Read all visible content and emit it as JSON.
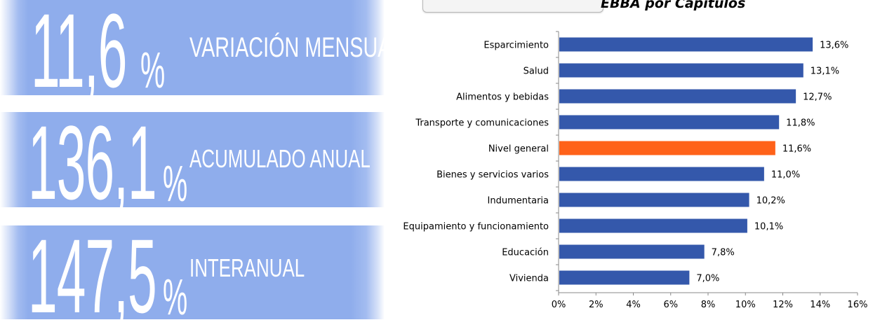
{
  "stats": [
    {
      "value": "11,6",
      "unit": "%",
      "label": "VARIACIÓN MENSUAL"
    },
    {
      "value": "136,1",
      "unit": "%",
      "label": "ACUMULADO ANUAL"
    },
    {
      "value": "147,5",
      "unit": "%",
      "label": "INTERANUAL"
    }
  ],
  "chart_title": "EBBA por Capítulos",
  "colors": {
    "panel": "#8fadec",
    "bar": "#3458ab",
    "highlight": "#ff6219"
  },
  "chart_data": {
    "type": "bar",
    "orientation": "horizontal",
    "categories": [
      "Esparcimiento",
      "Salud",
      "Alimentos y bebidas",
      "Transporte y comunicaciones",
      "Nivel general",
      "Bienes y servicios varios",
      "Indumentaria",
      "Equipamiento y funcionamiento",
      "Educación",
      "Vivienda"
    ],
    "values": [
      13.6,
      13.1,
      12.7,
      11.8,
      11.6,
      11.0,
      10.2,
      10.1,
      7.8,
      7.0
    ],
    "value_labels": [
      "13,6%",
      "13,1%",
      "12,7%",
      "11,8%",
      "11,6%",
      "11,0%",
      "10,2%",
      "10,1%",
      "7,8%",
      "7,0%"
    ],
    "highlight_category": "Nivel general",
    "xlim": [
      0,
      16
    ],
    "xticks": [
      0,
      2,
      4,
      6,
      8,
      10,
      12,
      14,
      16
    ],
    "xtick_labels": [
      "0%",
      "2%",
      "4%",
      "6%",
      "8%",
      "10%",
      "12%",
      "14%",
      "16%"
    ],
    "grid": false,
    "legend": "none"
  }
}
